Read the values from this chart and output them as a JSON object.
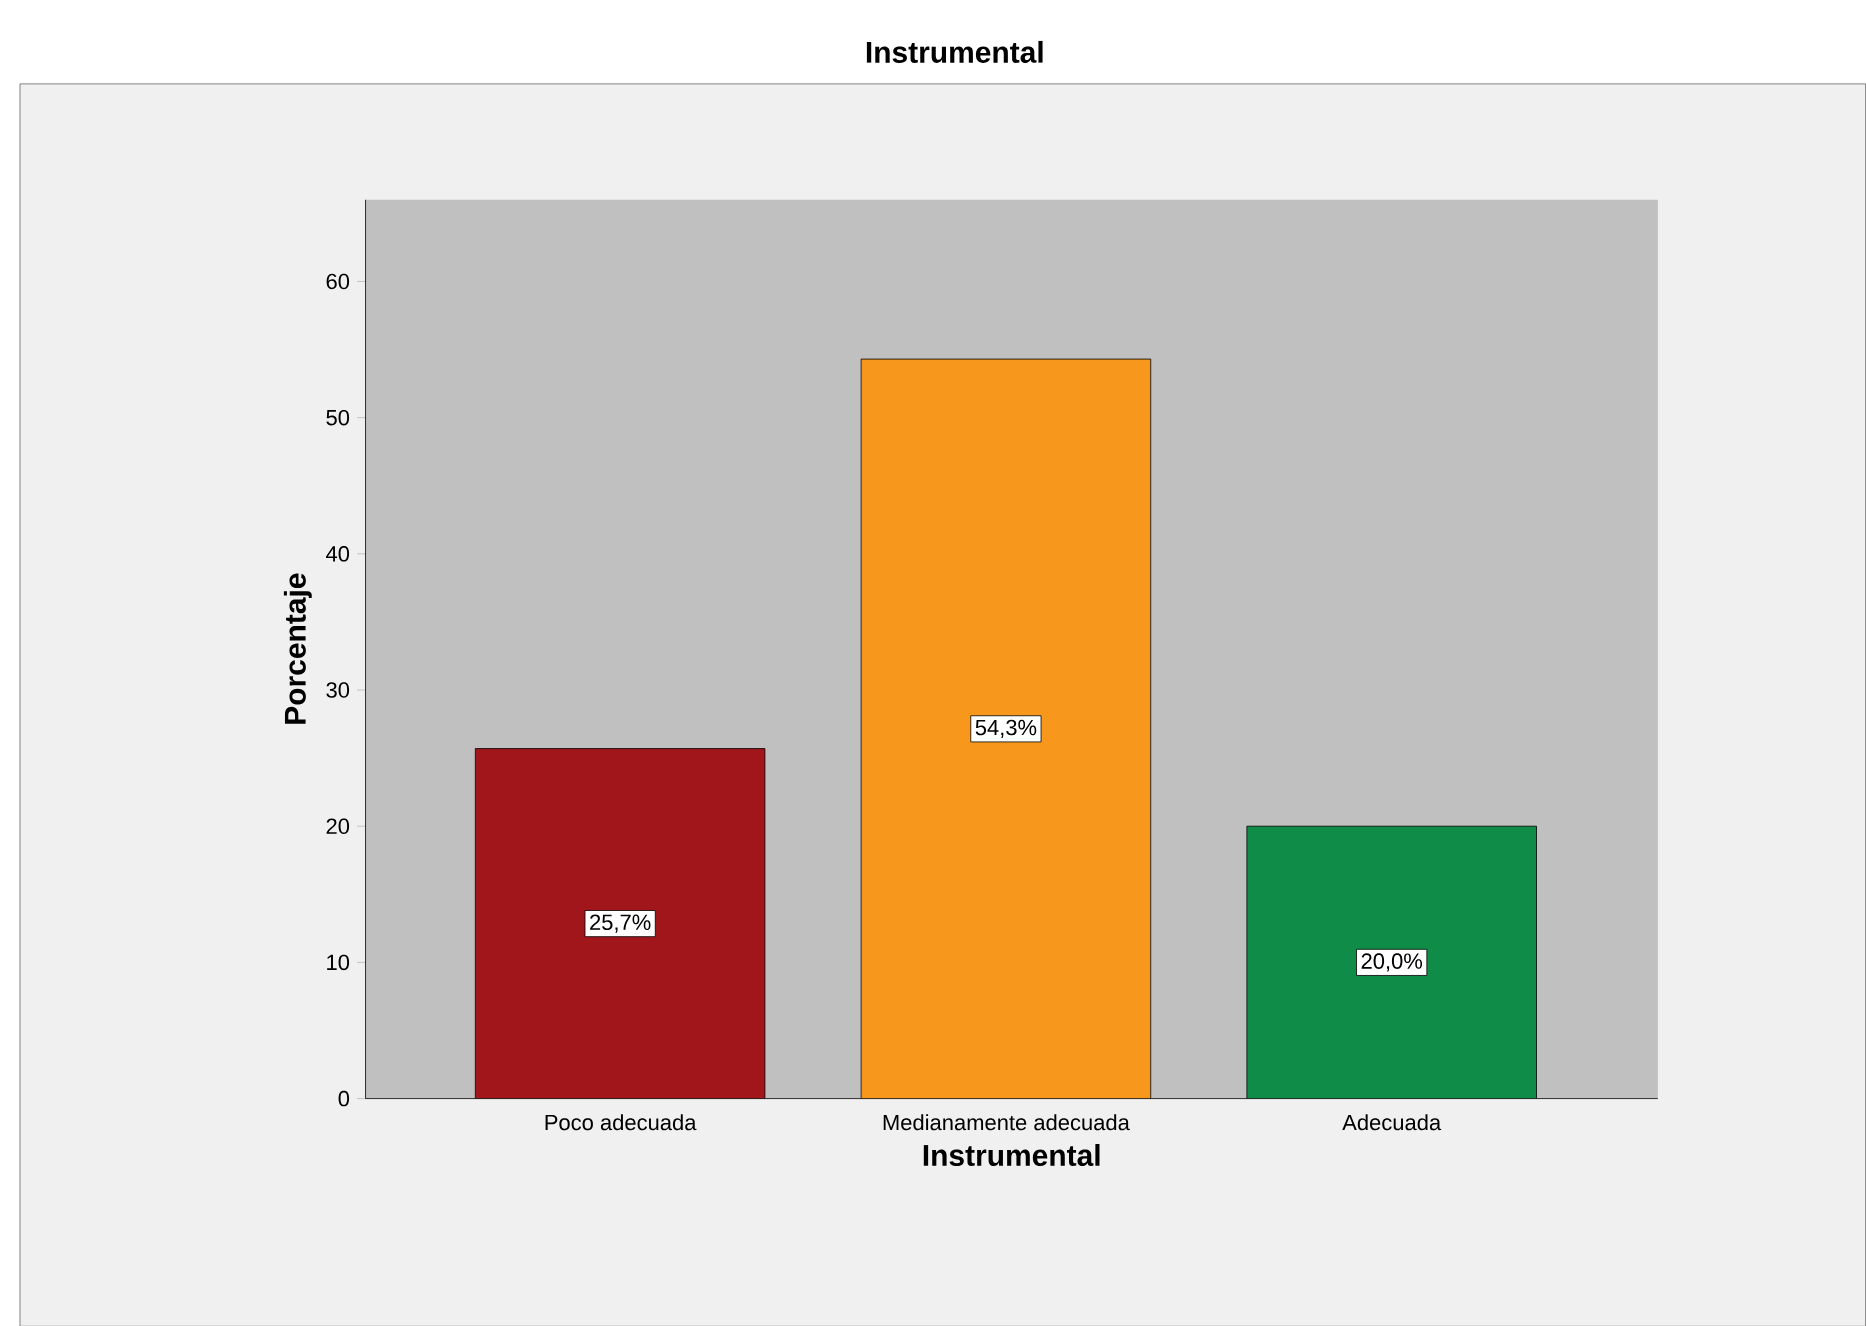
{
  "chart_data": {
    "type": "bar",
    "title": "Instrumental",
    "xlabel": "Instrumental",
    "ylabel": "Porcentaje",
    "categories": [
      "Poco adecuada",
      "Medianamente adecuada",
      "Adecuada"
    ],
    "values": [
      25.7,
      54.3,
      20.0
    ],
    "colors": [
      "#a0161a",
      "#f7981d",
      "#0f8c47"
    ],
    "value_labels": [
      "25,7%",
      "54,3%",
      "20,0%"
    ],
    "ylim": [
      0,
      66
    ],
    "yticks": [
      0,
      10,
      20,
      30,
      40,
      50,
      60
    ]
  }
}
